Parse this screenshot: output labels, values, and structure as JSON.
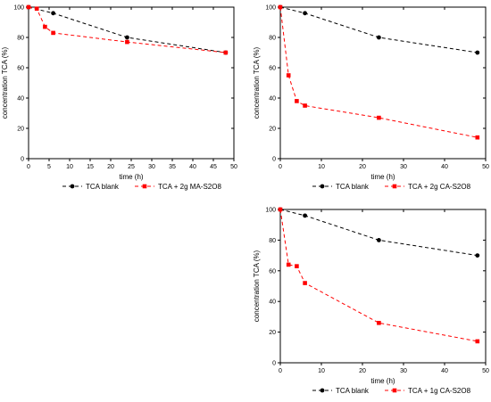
{
  "chart_data": [
    {
      "type": "line",
      "title": "",
      "xlabel": "time (h)",
      "ylabel": "concentration TCA (%)",
      "xlim": [
        0,
        50
      ],
      "ylim": [
        0,
        100
      ],
      "xticks": [
        0,
        5,
        10,
        15,
        20,
        25,
        30,
        35,
        40,
        45,
        50
      ],
      "yticks": [
        0,
        20,
        40,
        60,
        80,
        100
      ],
      "legend_position": "below",
      "series": [
        {
          "name": "TCA blank",
          "color": "#000000",
          "marker": "circle",
          "dash": "dashed",
          "x": [
            0,
            6,
            24,
            48
          ],
          "y": [
            100,
            96,
            80,
            70
          ]
        },
        {
          "name": "TCA + 2g MA-S2O8",
          "color": "#ff0000",
          "marker": "square",
          "dash": "dashed",
          "x": [
            0,
            2,
            4,
            6,
            24,
            48
          ],
          "y": [
            100,
            99,
            87,
            83,
            77,
            70
          ]
        }
      ]
    },
    {
      "type": "line",
      "title": "",
      "xlabel": "time (h)",
      "ylabel": "concentration TCA (%)",
      "xlim": [
        0,
        50
      ],
      "ylim": [
        0,
        100
      ],
      "xticks": [
        0,
        10,
        20,
        30,
        40,
        50
      ],
      "yticks": [
        0,
        20,
        40,
        60,
        80,
        100
      ],
      "legend_position": "below",
      "series": [
        {
          "name": "TCA blank",
          "color": "#000000",
          "marker": "circle",
          "dash": "dashed",
          "x": [
            0,
            6,
            24,
            48
          ],
          "y": [
            100,
            96,
            80,
            70
          ]
        },
        {
          "name": "TCA + 2g CA-S2O8",
          "color": "#ff0000",
          "marker": "square",
          "dash": "dashed",
          "x": [
            0,
            2,
            4,
            6,
            24,
            48
          ],
          "y": [
            100,
            55,
            38,
            35,
            27,
            14
          ]
        }
      ]
    },
    {
      "type": "line",
      "title": "",
      "xlabel": "time (h)",
      "ylabel": "concentration TCA (%)",
      "xlim": [
        0,
        50
      ],
      "ylim": [
        0,
        100
      ],
      "xticks": [
        0,
        10,
        20,
        30,
        40,
        50
      ],
      "yticks": [
        0,
        20,
        40,
        60,
        80,
        100
      ],
      "legend_position": "below",
      "series": [
        {
          "name": "TCA blank",
          "color": "#000000",
          "marker": "circle",
          "dash": "dashed",
          "x": [
            0,
            6,
            24,
            48
          ],
          "y": [
            100,
            96,
            80,
            70
          ]
        },
        {
          "name": "TCA + 1g CA-S2O8",
          "color": "#ff0000",
          "marker": "square",
          "dash": "dashed",
          "x": [
            0,
            2,
            4,
            6,
            24,
            48
          ],
          "y": [
            100,
            64,
            63,
            52,
            26,
            14
          ]
        }
      ]
    }
  ]
}
